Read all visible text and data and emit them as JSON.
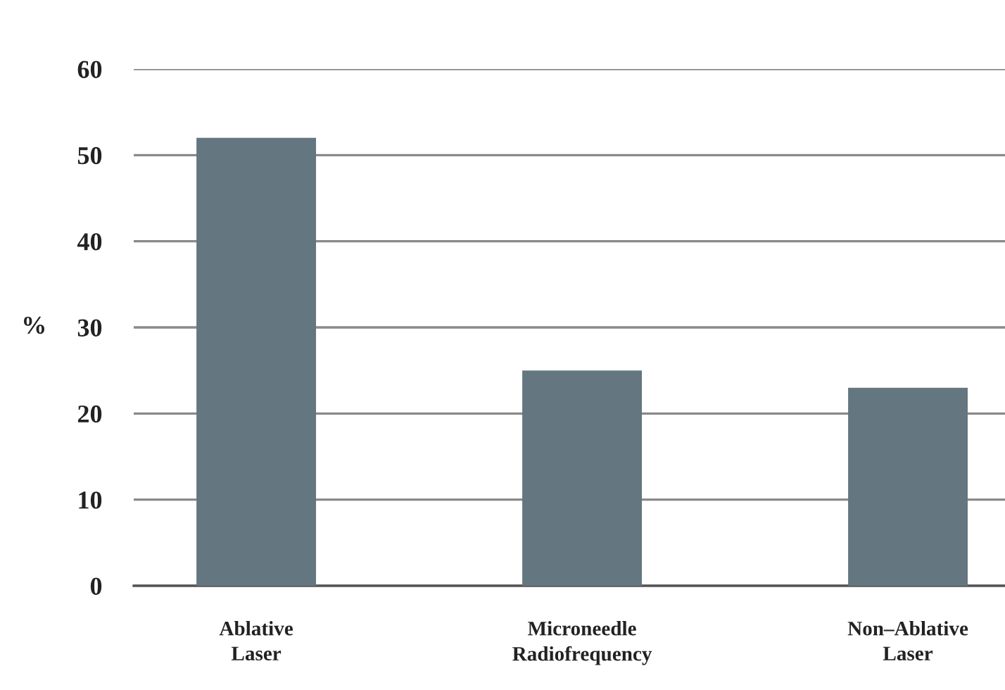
{
  "chart_data": {
    "type": "bar",
    "categories": [
      "Ablative\nLaser",
      "Microneedle\nRadiofrequency",
      "Non–Ablative\nLaser"
    ],
    "values": [
      52,
      25,
      23
    ],
    "color": "#64767f",
    "ylabel": "%",
    "ylim": [
      0,
      60
    ],
    "yticks": [
      0,
      10,
      20,
      30,
      40,
      50,
      60
    ],
    "grid": "y"
  }
}
